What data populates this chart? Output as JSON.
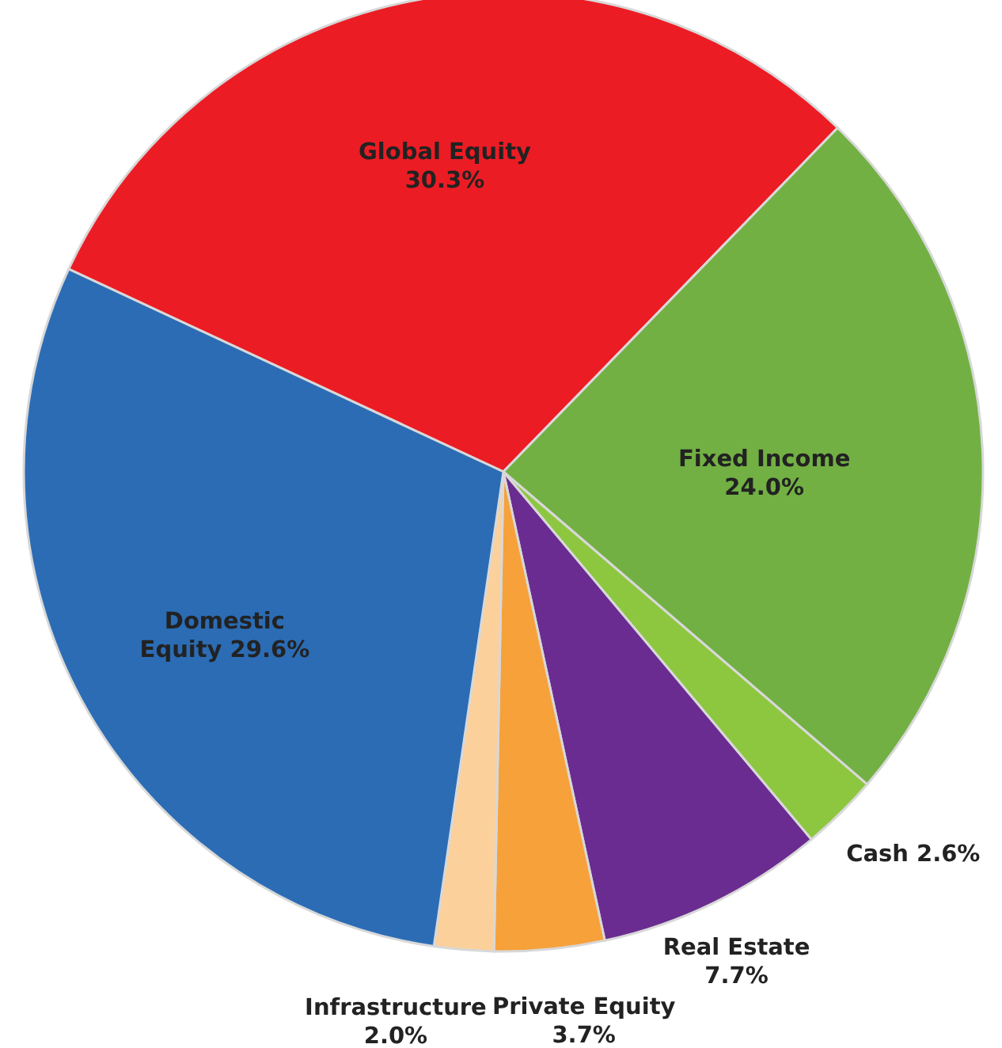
{
  "chart_data": {
    "type": "pie",
    "categories": [
      "Global Equity",
      "Fixed Income",
      "Cash",
      "Real Estate",
      "Private Equity",
      "Infrastructure",
      "Domestic Equity"
    ],
    "values": [
      30.3,
      24.0,
      2.6,
      7.7,
      3.7,
      2.0,
      29.6
    ],
    "colors": [
      "#ec1c24",
      "#72b043",
      "#8dc63f",
      "#6a2c91",
      "#f7a13a",
      "#fcd09b",
      "#2b6cb5"
    ],
    "value_labels": [
      "30.3%",
      "24.0%",
      "2.6%",
      "7.7%",
      "3.7%",
      "2.0%",
      "29.6%"
    ]
  }
}
